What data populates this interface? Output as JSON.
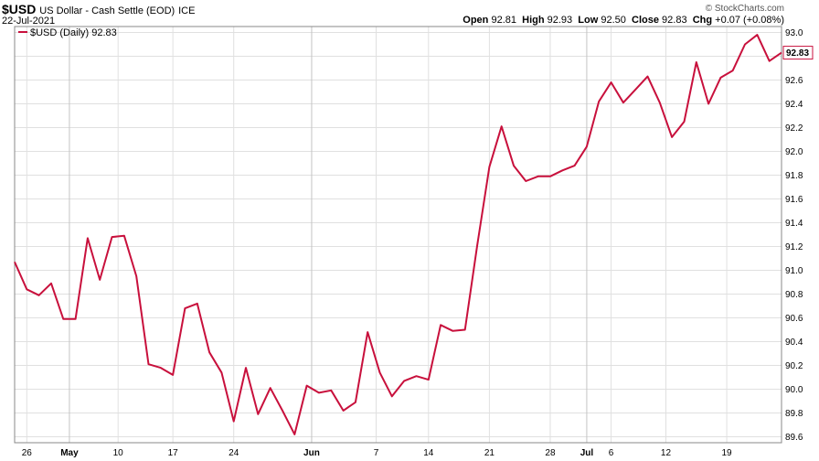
{
  "header": {
    "symbol": "$USD",
    "description": "US Dollar - Cash Settle (EOD)",
    "exchange": "ICE",
    "date": "22-Jul-2021",
    "credit": "© StockCharts.com",
    "open_label": "Open",
    "open": "92.81",
    "high_label": "High",
    "high": "92.93",
    "low_label": "Low",
    "low": "92.50",
    "close_label": "Close",
    "close": "92.83",
    "chg_label": "Chg",
    "chg": "+0.07 (+0.08%)"
  },
  "legend": {
    "text": "$USD (Daily) 92.83"
  },
  "last_value_label": "92.83",
  "colors": {
    "line": "#c8103c",
    "grid": "#e0e0e0",
    "major_grid": "#c4c4c4"
  },
  "chart_data": {
    "type": "line",
    "series": [
      {
        "name": "$USD (Daily) 92.83",
        "values": [
          91.07,
          90.84,
          90.79,
          90.89,
          90.59,
          90.59,
          91.27,
          90.92,
          91.28,
          91.29,
          90.95,
          90.21,
          90.18,
          90.12,
          90.68,
          90.72,
          90.31,
          90.14,
          89.73,
          90.18,
          89.79,
          90.01,
          89.82,
          89.62,
          90.03,
          89.97,
          89.99,
          89.82,
          89.89,
          90.48,
          90.14,
          89.94,
          90.07,
          90.11,
          90.08,
          90.54,
          90.49,
          90.5,
          91.21,
          91.87,
          92.21,
          91.88,
          91.75,
          91.79,
          91.79,
          91.84,
          91.88,
          92.04,
          92.42,
          92.58,
          92.41,
          92.52,
          92.63,
          92.41,
          92.12,
          92.25,
          92.75,
          92.4,
          92.62,
          92.68,
          92.9,
          92.98,
          92.76,
          92.83
        ]
      }
    ],
    "ylim": [
      89.55,
      93.05
    ],
    "yticks": [
      "89.6",
      "89.8",
      "90.0",
      "90.2",
      "90.4",
      "90.6",
      "90.8",
      "91.0",
      "91.2",
      "91.4",
      "91.6",
      "91.8",
      "92.0",
      "92.2",
      "92.4",
      "92.6",
      "92.8",
      "93.0"
    ],
    "xticks": [
      {
        "label": "26",
        "index": 1.0,
        "major": false
      },
      {
        "label": "May",
        "index": 4.5,
        "major": true
      },
      {
        "label": "10",
        "index": 8.5,
        "major": false
      },
      {
        "label": "17",
        "index": 13.0,
        "major": false
      },
      {
        "label": "24",
        "index": 18.0,
        "major": false
      },
      {
        "label": "Jun",
        "index": 24.4,
        "major": true
      },
      {
        "label": "7",
        "index": 29.7,
        "major": false
      },
      {
        "label": "14",
        "index": 34.0,
        "major": false
      },
      {
        "label": "21",
        "index": 39.0,
        "major": false
      },
      {
        "label": "28",
        "index": 44.0,
        "major": false
      },
      {
        "label": "Jul",
        "index": 47.0,
        "major": true
      },
      {
        "label": "6",
        "index": 49.0,
        "major": false
      },
      {
        "label": "12",
        "index": 53.5,
        "major": false
      },
      {
        "label": "19",
        "index": 58.5,
        "major": false
      }
    ],
    "grid": true,
    "legend_position": "top-left"
  }
}
